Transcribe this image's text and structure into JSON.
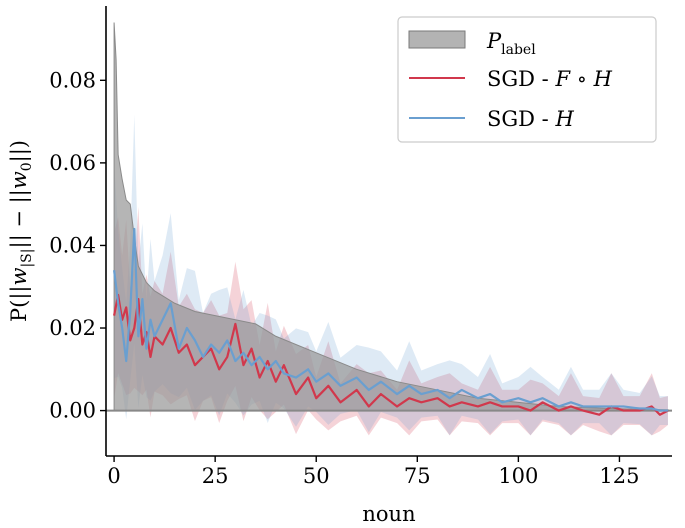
{
  "chart_data": {
    "type": "line",
    "xlabel": "noun",
    "ylabel": "P(||w_{|S|}|| − ||w_0||)",
    "xlim": [
      -2,
      138
    ],
    "ylim": [
      -0.011,
      0.098
    ],
    "xticks": [
      0,
      25,
      50,
      75,
      100,
      125
    ],
    "yticks": [
      0.0,
      0.02,
      0.04,
      0.06,
      0.08
    ],
    "xtick_labels": [
      "0",
      "25",
      "50",
      "75",
      "100",
      "125"
    ],
    "ytick_labels": [
      "0.00",
      "0.02",
      "0.04",
      "0.06",
      "0.08"
    ],
    "grid": false,
    "legend": {
      "placement": "top-right",
      "entries": [
        {
          "label_main": "P",
          "label_sub": "label",
          "kind": "area",
          "color": "#999999"
        },
        {
          "label_prefix": "SGD - ",
          "label_math": "F ∘ H",
          "kind": "line",
          "color": "#d1384c"
        },
        {
          "label_prefix": "SGD - ",
          "label_math": "H",
          "kind": "line",
          "color": "#6a9fd0"
        }
      ]
    },
    "series": [
      {
        "name": "P_label",
        "kind": "area",
        "color": "#999999",
        "x": [
          0,
          0.5,
          1,
          2,
          3,
          4,
          5,
          6,
          8,
          10,
          15,
          20,
          25,
          30,
          35,
          40,
          50,
          60,
          70,
          80,
          90,
          100,
          110,
          120,
          130,
          137
        ],
        "values": [
          0.094,
          0.085,
          0.062,
          0.056,
          0.051,
          0.05,
          0.042,
          0.035,
          0.031,
          0.029,
          0.026,
          0.024,
          0.023,
          0.022,
          0.021,
          0.018,
          0.014,
          0.01,
          0.007,
          0.005,
          0.003,
          0.002,
          0.001,
          0.0006,
          0.0003,
          0.0002
        ]
      },
      {
        "name": "SGD - F ∘ H",
        "kind": "line",
        "color": "#d1384c",
        "x": [
          0,
          1,
          2,
          3,
          4,
          5,
          6,
          7,
          8,
          9,
          10,
          12,
          14,
          16,
          18,
          20,
          22,
          24,
          26,
          28,
          30,
          32,
          34,
          36,
          38,
          40,
          42,
          45,
          48,
          50,
          53,
          56,
          60,
          63,
          66,
          70,
          73,
          76,
          80,
          83,
          86,
          90,
          93,
          96,
          100,
          103,
          106,
          110,
          113,
          116,
          120,
          123,
          126,
          130,
          133,
          135,
          137
        ],
        "values": [
          0.023,
          0.028,
          0.022,
          0.025,
          0.017,
          0.02,
          0.027,
          0.016,
          0.019,
          0.013,
          0.018,
          0.016,
          0.02,
          0.014,
          0.016,
          0.011,
          0.013,
          0.015,
          0.01,
          0.013,
          0.021,
          0.011,
          0.015,
          0.008,
          0.012,
          0.007,
          0.011,
          0.004,
          0.008,
          0.003,
          0.006,
          0.002,
          0.005,
          0.001,
          0.004,
          0.001,
          0.003,
          0.002,
          0.003,
          0.001,
          0.002,
          0.001,
          0.002,
          0.001,
          0.001,
          0.0,
          0.002,
          0.0,
          0.001,
          0.0,
          -0.001,
          0.001,
          0.0,
          0.0,
          0.001,
          -0.001,
          0.0
        ]
      },
      {
        "name": "SGD - H",
        "kind": "line",
        "color": "#6a9fd0",
        "x": [
          0,
          1,
          2,
          3,
          4,
          5,
          6,
          7,
          8,
          9,
          10,
          12,
          14,
          16,
          18,
          20,
          22,
          24,
          26,
          28,
          30,
          32,
          34,
          36,
          38,
          40,
          42,
          45,
          48,
          50,
          53,
          56,
          60,
          63,
          66,
          70,
          73,
          76,
          80,
          83,
          86,
          90,
          93,
          96,
          100,
          103,
          106,
          110,
          113,
          116,
          120,
          123,
          126,
          130,
          133,
          135,
          137
        ],
        "values": [
          0.034,
          0.026,
          0.02,
          0.012,
          0.024,
          0.044,
          0.018,
          0.027,
          0.015,
          0.022,
          0.018,
          0.022,
          0.026,
          0.015,
          0.02,
          0.017,
          0.013,
          0.016,
          0.014,
          0.017,
          0.012,
          0.014,
          0.011,
          0.013,
          0.01,
          0.012,
          0.009,
          0.008,
          0.01,
          0.007,
          0.009,
          0.006,
          0.008,
          0.005,
          0.007,
          0.004,
          0.006,
          0.004,
          0.005,
          0.003,
          0.005,
          0.003,
          0.004,
          0.002,
          0.003,
          0.002,
          0.003,
          0.001,
          0.002,
          0.001,
          0.001,
          0.001,
          0.001,
          0.0005,
          0.0005,
          0.0,
          0.0
        ]
      }
    ]
  }
}
